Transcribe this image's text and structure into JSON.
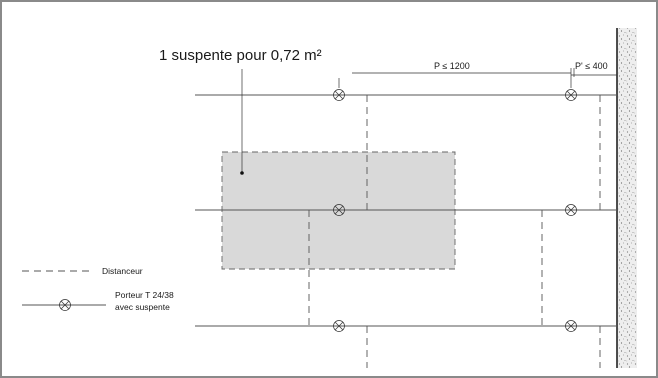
{
  "annotation": {
    "title": "1 suspente pour 0,72 m²"
  },
  "dimensions": {
    "p_label": "P ≤ 1200",
    "p_prime_label": "P' ≤ 400"
  },
  "legend": {
    "spacer_label": "Distanceur",
    "carrier_label_line1": "Porteur T 24/38",
    "carrier_label_line2": "avec suspente"
  },
  "colors": {
    "area_fill": "#d9d9d9",
    "line": "#555555",
    "wall_fill": "#ececec"
  }
}
